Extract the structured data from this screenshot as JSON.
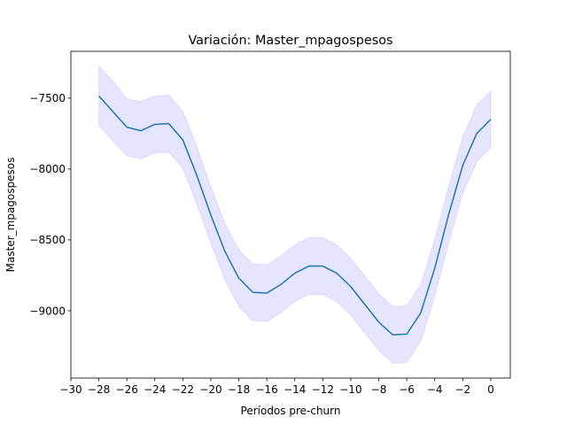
{
  "chart_data": {
    "type": "line",
    "title": "Variación: Master_mpagospesos",
    "xlabel": "Períodos pre-churn",
    "ylabel": "Master_mpagospesos",
    "xlim": [
      -30,
      1.4
    ],
    "ylim": [
      -9475,
      -7170
    ],
    "x_ticks": [
      -30,
      -28,
      -26,
      -24,
      -22,
      -20,
      -18,
      -16,
      -14,
      -12,
      -10,
      -8,
      -6,
      -4,
      -2,
      0
    ],
    "x_tick_labels": [
      "−30",
      "−28",
      "−26",
      "−24",
      "−22",
      "−20",
      "−18",
      "−16",
      "−14",
      "−12",
      "−10",
      "−8",
      "−6",
      "−4",
      "−2",
      "0"
    ],
    "y_ticks": [
      -9000,
      -8500,
      -8000,
      -7500
    ],
    "y_tick_labels": [
      "−9000",
      "−8500",
      "−8000",
      "−7500"
    ],
    "grid": false,
    "line_color": "#1f77b4",
    "band_color": "#0000ff",
    "x": [
      -28,
      -27,
      -26,
      -25,
      -24,
      -23,
      -22,
      -21,
      -20,
      -19,
      -18,
      -17,
      -16,
      -15,
      -14,
      -13,
      -12,
      -11,
      -10,
      -9,
      -8,
      -7,
      -6,
      -5,
      -4,
      -3,
      -2,
      -1,
      0
    ],
    "y": [
      -7485,
      -7595,
      -7705,
      -7730,
      -7685,
      -7680,
      -7795,
      -8045,
      -8325,
      -8580,
      -8770,
      -8870,
      -8875,
      -8815,
      -8735,
      -8685,
      -8685,
      -8735,
      -8830,
      -8955,
      -9080,
      -9170,
      -9165,
      -9015,
      -8700,
      -8320,
      -7975,
      -7750,
      -7650
    ],
    "upper": [
      -7275,
      -7380,
      -7505,
      -7525,
      -7485,
      -7480,
      -7595,
      -7845,
      -8125,
      -8380,
      -8570,
      -8670,
      -8675,
      -8615,
      -8535,
      -8485,
      -8485,
      -8535,
      -8630,
      -8755,
      -8880,
      -8970,
      -8965,
      -8815,
      -8500,
      -8120,
      -7775,
      -7550,
      -7450
    ],
    "lower": [
      -7695,
      -7800,
      -7905,
      -7930,
      -7885,
      -7880,
      -7995,
      -8245,
      -8525,
      -8780,
      -8970,
      -9070,
      -9075,
      -9015,
      -8935,
      -8885,
      -8885,
      -8935,
      -9030,
      -9155,
      -9280,
      -9370,
      -9365,
      -9215,
      -8900,
      -8520,
      -8175,
      -7950,
      -7850
    ]
  }
}
